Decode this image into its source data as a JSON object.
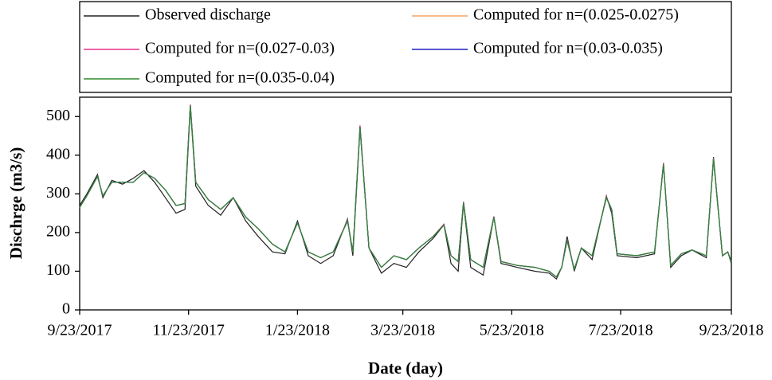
{
  "chart_data": {
    "type": "line",
    "ylabel": "Dischrge (m3/s)",
    "xlabel": "Date (day)",
    "x": [
      "9/23/2017",
      "9/27/2017",
      "10/3/2017",
      "10/6/2017",
      "10/11/2017",
      "10/17/2017",
      "10/23/2017",
      "10/29/2017",
      "11/4/2017",
      "11/10/2017",
      "11/16/2017",
      "11/21/2017",
      "11/24/2017",
      "11/27/2017",
      "12/4/2017",
      "12/11/2017",
      "12/18/2017",
      "12/25/2017",
      "1/1/2018",
      "1/9/2018",
      "1/16/2018",
      "1/23/2018",
      "1/29/2018",
      "2/5/2018",
      "2/12/2018",
      "2/20/2018",
      "2/23/2018",
      "2/27/2018",
      "3/4/2018",
      "3/11/2018",
      "3/18/2018",
      "3/25/2018",
      "4/1/2018",
      "4/9/2018",
      "4/15/2018",
      "4/19/2018",
      "4/23/2018",
      "4/26/2018",
      "4/30/2018",
      "5/7/2018",
      "5/13/2018",
      "5/17/2018",
      "5/26/2018",
      "6/5/2018",
      "6/13/2018",
      "6/17/2018",
      "6/20/2018",
      "6/23/2018",
      "6/27/2018",
      "7/1/2018",
      "7/7/2018",
      "7/15/2018",
      "7/18/2018",
      "7/21/2018",
      "8/1/2018",
      "8/11/2018",
      "8/16/2018",
      "8/20/2018",
      "8/26/2018",
      "9/1/2018",
      "9/9/2018",
      "9/13/2018",
      "9/18/2018",
      "9/21/2018",
      "9/23/2018"
    ],
    "series": [
      {
        "name": "Observed discharge",
        "color": "#222222",
        "values": [
          270,
          300,
          350,
          290,
          335,
          325,
          340,
          360,
          330,
          290,
          250,
          260,
          525,
          320,
          270,
          245,
          290,
          230,
          190,
          150,
          145,
          230,
          140,
          120,
          140,
          235,
          140,
          470,
          160,
          95,
          120,
          110,
          150,
          185,
          220,
          120,
          100,
          275,
          110,
          90,
          240,
          120,
          110,
          100,
          95,
          80,
          110,
          190,
          100,
          160,
          130,
          295,
          250,
          140,
          135,
          145,
          380,
          110,
          140,
          155,
          135,
          395,
          140,
          150,
          120
        ]
      },
      {
        "name": "Computed for n=(0.025-0.0275)",
        "color": "#f4a460",
        "values": [
          265,
          295,
          345,
          295,
          330,
          330,
          330,
          355,
          340,
          310,
          270,
          275,
          532,
          330,
          285,
          260,
          290,
          240,
          210,
          170,
          150,
          225,
          150,
          135,
          150,
          232,
          150,
          478,
          160,
          110,
          140,
          130,
          160,
          190,
          222,
          140,
          125,
          280,
          130,
          110,
          242,
          125,
          115,
          110,
          100,
          85,
          110,
          182,
          105,
          160,
          140,
          292,
          260,
          145,
          140,
          150,
          378,
          115,
          145,
          155,
          140,
          392,
          140,
          150,
          125
        ]
      },
      {
        "name": "Computed for n=(0.027-0.03)",
        "color": "#e8328c",
        "values": [
          265,
          295,
          345,
          295,
          330,
          330,
          330,
          355,
          340,
          310,
          270,
          275,
          530,
          330,
          285,
          260,
          290,
          240,
          210,
          170,
          150,
          225,
          150,
          135,
          150,
          231,
          150,
          476,
          160,
          110,
          140,
          130,
          160,
          190,
          221,
          140,
          125,
          279,
          130,
          110,
          241,
          125,
          115,
          110,
          100,
          85,
          110,
          181,
          105,
          160,
          140,
          291,
          260,
          145,
          140,
          150,
          377,
          115,
          145,
          155,
          140,
          391,
          140,
          150,
          125
        ]
      },
      {
        "name": "Computed for n=(0.03-0.035)",
        "color": "#2020c0",
        "values": [
          265,
          295,
          345,
          295,
          330,
          330,
          330,
          355,
          340,
          310,
          270,
          275,
          529,
          330,
          285,
          260,
          290,
          240,
          210,
          170,
          150,
          225,
          150,
          135,
          150,
          230,
          150,
          474,
          160,
          110,
          140,
          130,
          160,
          190,
          220,
          140,
          125,
          278,
          130,
          110,
          240,
          125,
          115,
          110,
          100,
          85,
          110,
          180,
          105,
          160,
          140,
          290,
          260,
          145,
          140,
          150,
          376,
          115,
          145,
          155,
          140,
          390,
          140,
          150,
          125
        ]
      },
      {
        "name": "Computed for n=(0.035-0.04)",
        "color": "#2e8b2e",
        "values": [
          265,
          295,
          345,
          295,
          330,
          330,
          330,
          355,
          340,
          310,
          270,
          275,
          528,
          330,
          285,
          260,
          290,
          240,
          210,
          170,
          150,
          225,
          150,
          135,
          150,
          229,
          150,
          472,
          160,
          110,
          140,
          130,
          160,
          190,
          219,
          140,
          125,
          277,
          130,
          110,
          239,
          125,
          115,
          110,
          100,
          85,
          110,
          179,
          105,
          160,
          140,
          289,
          260,
          145,
          140,
          150,
          375,
          115,
          145,
          155,
          140,
          389,
          140,
          150,
          125
        ]
      }
    ],
    "xlim": [
      "9/23/2017",
      "9/23/2018"
    ],
    "xticks": [
      "9/23/2017",
      "11/23/2017",
      "1/23/2018",
      "3/23/2018",
      "5/23/2018",
      "7/23/2018",
      "9/23/2018"
    ],
    "ylim": [
      0,
      550
    ],
    "yticks": [
      0,
      100,
      200,
      300,
      400,
      500
    ],
    "grid": false,
    "legend": "top"
  }
}
